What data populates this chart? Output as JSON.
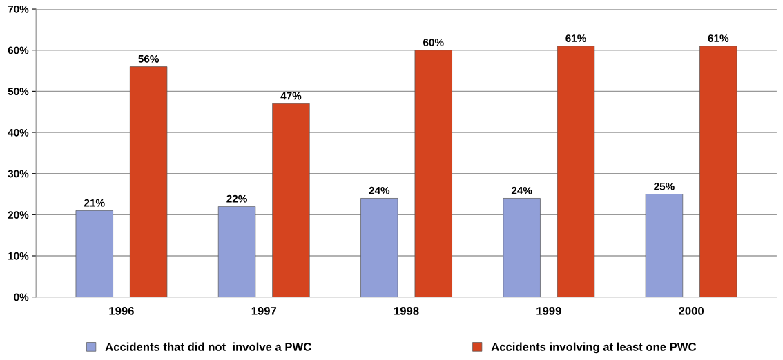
{
  "chart_data": {
    "type": "bar",
    "categories": [
      "1996",
      "1997",
      "1998",
      "1999",
      "2000"
    ],
    "series": [
      {
        "name": "Accidents that did not  involve a PWC",
        "color": "#919fd8",
        "values": [
          21,
          22,
          24,
          24,
          25
        ],
        "value_labels": [
          "21%",
          "22%",
          "24%",
          "24%",
          "25%"
        ]
      },
      {
        "name": "Accidents involving at least one PWC",
        "color": "#d5441f",
        "values": [
          56,
          47,
          60,
          61,
          61
        ],
        "value_labels": [
          "56%",
          "47%",
          "60%",
          "61%",
          "61%"
        ]
      }
    ],
    "ylim": [
      0,
      70
    ],
    "yticks": [
      {
        "value": 0,
        "label": "0%"
      },
      {
        "value": 10,
        "label": "10%"
      },
      {
        "value": 20,
        "label": "20%"
      },
      {
        "value": 30,
        "label": "30%"
      },
      {
        "value": 40,
        "label": "40%"
      },
      {
        "value": 50,
        "label": "50%"
      },
      {
        "value": 60,
        "label": "60%"
      },
      {
        "value": 70,
        "label": "70%"
      }
    ],
    "grid": "y",
    "legend": "bottom"
  }
}
